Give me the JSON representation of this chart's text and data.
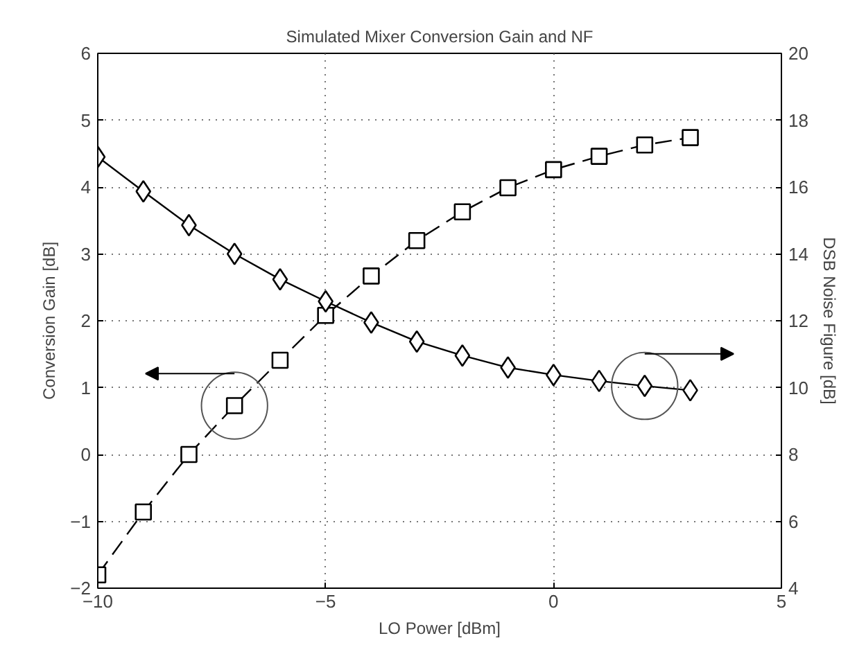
{
  "chart_data": {
    "type": "line",
    "title": "Simulated Mixer Conversion Gain and NF",
    "xlabel": "LO Power [dBm]",
    "ylabel": "Conversion Gain [dB]",
    "y2label": "DSB Noise Figure [dB]",
    "x": [
      -10,
      -9,
      -8,
      -7,
      -6,
      -5,
      -4,
      -3,
      -2,
      -1,
      0,
      1,
      2,
      3
    ],
    "series": [
      {
        "color": "#000000",
        "marker": "square",
        "line_style": "dashed",
        "values": [
          -1.8,
          -0.86,
          0.0,
          0.73,
          1.41,
          2.08,
          2.67,
          3.2,
          3.63,
          3.99,
          4.26,
          4.46,
          4.63,
          4.74
        ]
      },
      {
        "color": "#000000",
        "marker": "diamond",
        "line_style": "solid",
        "axis": "y2",
        "values": [
          16.9,
          15.87,
          14.86,
          14.0,
          13.24,
          12.58,
          11.95,
          11.38,
          10.96,
          10.6,
          10.38,
          10.2,
          10.05,
          9.92
        ]
      }
    ],
    "xlim": [
      -10,
      5
    ],
    "xticks": [
      {
        "value": -10,
        "label": "−10"
      },
      {
        "value": -5,
        "label": "−5"
      },
      0,
      5
    ],
    "ylim": [
      -2,
      6
    ],
    "yticks": [
      {
        "value": -2,
        "label": "−2"
      },
      {
        "value": -1,
        "label": "−1"
      },
      0,
      1,
      2,
      3,
      4,
      5,
      6
    ],
    "y2lim": [
      4,
      20
    ],
    "y2ticks": [
      4,
      6,
      8,
      10,
      12,
      14,
      16,
      18,
      20
    ],
    "grid": true
  }
}
